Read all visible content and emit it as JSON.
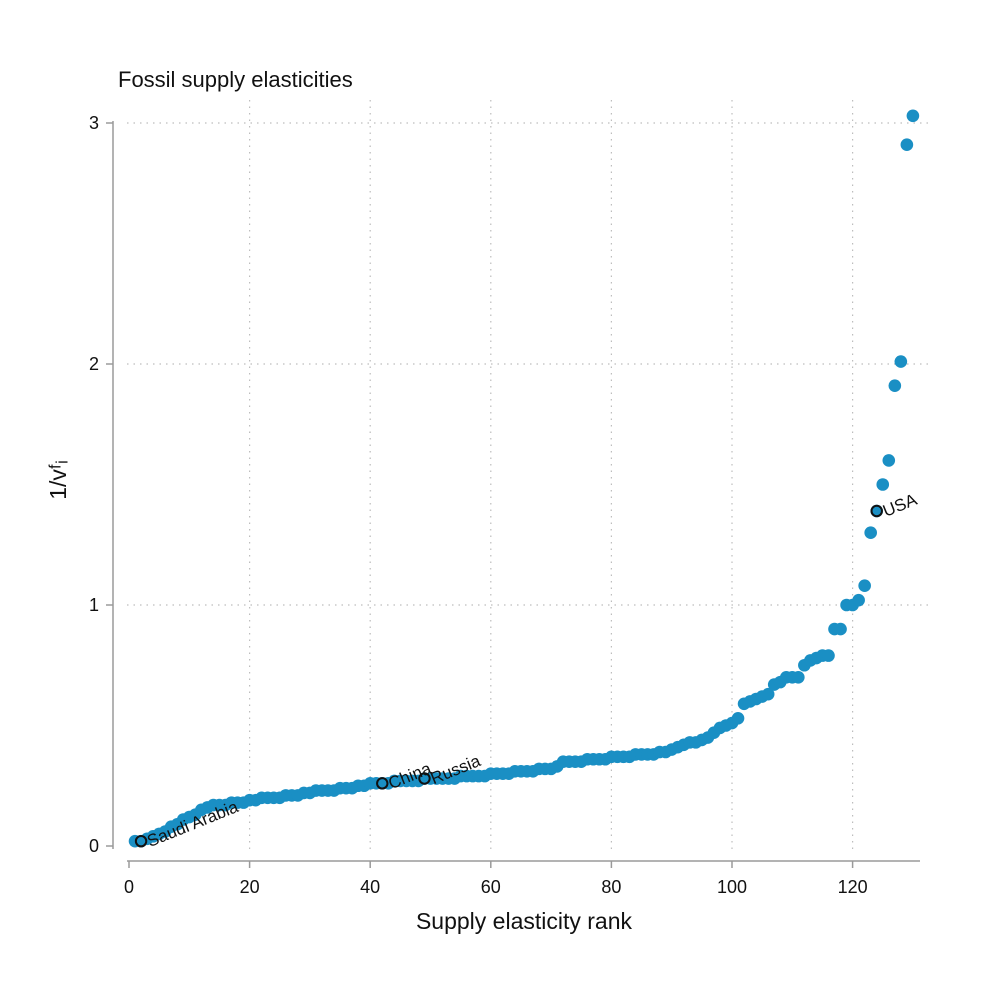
{
  "chart_data": {
    "type": "scatter",
    "title": "Fossil supply elasticities",
    "xlabel": "Supply elasticity rank",
    "ylabel": "1/vᶠᵢ",
    "xlim": [
      0,
      130
    ],
    "ylim": [
      0,
      3
    ],
    "x_ticks": [
      0,
      20,
      40,
      60,
      80,
      100,
      120
    ],
    "y_ticks": [
      0,
      1,
      2,
      3
    ],
    "grid": true,
    "colors": {
      "points": "#1a8fc4",
      "highlight_edge": "#111111"
    },
    "series": [
      {
        "x": [
          1,
          2,
          3,
          4,
          5,
          6,
          7,
          8,
          9,
          10,
          11,
          12,
          13,
          14,
          15,
          16,
          17,
          18,
          19,
          20,
          21,
          22,
          23,
          24,
          25,
          26,
          27,
          28,
          29,
          30,
          31,
          32,
          33,
          34,
          35,
          36,
          37,
          38,
          39,
          40,
          41,
          42,
          43,
          44,
          45,
          46,
          47,
          48,
          49,
          50,
          51,
          52,
          53,
          54,
          55,
          56,
          57,
          58,
          59,
          60,
          61,
          62,
          63,
          64,
          65,
          66,
          67,
          68,
          69,
          70,
          71,
          72,
          73,
          74,
          75,
          76,
          77,
          78,
          79,
          80,
          81,
          82,
          83,
          84,
          85,
          86,
          87,
          88,
          89,
          90,
          91,
          92,
          93,
          94,
          95,
          96,
          97,
          98,
          99,
          100,
          101,
          102,
          103,
          104,
          105,
          106,
          107,
          108,
          109,
          110,
          111,
          112,
          113,
          114,
          115,
          116,
          117,
          118,
          119,
          120,
          121,
          122,
          123,
          124,
          125,
          126,
          127,
          128,
          129,
          130
        ],
        "y": [
          0.02,
          0.02,
          0.03,
          0.04,
          0.05,
          0.06,
          0.08,
          0.09,
          0.11,
          0.12,
          0.13,
          0.15,
          0.16,
          0.17,
          0.17,
          0.17,
          0.18,
          0.18,
          0.18,
          0.19,
          0.19,
          0.2,
          0.2,
          0.2,
          0.2,
          0.21,
          0.21,
          0.21,
          0.22,
          0.22,
          0.23,
          0.23,
          0.23,
          0.23,
          0.24,
          0.24,
          0.24,
          0.25,
          0.25,
          0.26,
          0.26,
          0.26,
          0.26,
          0.27,
          0.27,
          0.27,
          0.27,
          0.27,
          0.28,
          0.28,
          0.28,
          0.28,
          0.28,
          0.28,
          0.29,
          0.29,
          0.29,
          0.29,
          0.29,
          0.3,
          0.3,
          0.3,
          0.3,
          0.31,
          0.31,
          0.31,
          0.31,
          0.32,
          0.32,
          0.32,
          0.33,
          0.35,
          0.35,
          0.35,
          0.35,
          0.36,
          0.36,
          0.36,
          0.36,
          0.37,
          0.37,
          0.37,
          0.37,
          0.38,
          0.38,
          0.38,
          0.38,
          0.39,
          0.39,
          0.4,
          0.41,
          0.42,
          0.43,
          0.43,
          0.44,
          0.45,
          0.47,
          0.49,
          0.5,
          0.51,
          0.53,
          0.59,
          0.6,
          0.61,
          0.62,
          0.63,
          0.67,
          0.68,
          0.7,
          0.7,
          0.7,
          0.75,
          0.77,
          0.78,
          0.79,
          0.79,
          0.9,
          0.9,
          1.0,
          1.0,
          1.02,
          1.08,
          1.3,
          1.39,
          1.5,
          1.6,
          1.91,
          2.01,
          2.91,
          3.03
        ]
      }
    ],
    "annotations": [
      {
        "label": "Saudi Arabia",
        "x": 2,
        "y": 0.02
      },
      {
        "label": "China",
        "x": 42,
        "y": 0.26
      },
      {
        "label": "Russia",
        "x": 49,
        "y": 0.28
      },
      {
        "label": "USA",
        "x": 124,
        "y": 1.39
      }
    ]
  }
}
